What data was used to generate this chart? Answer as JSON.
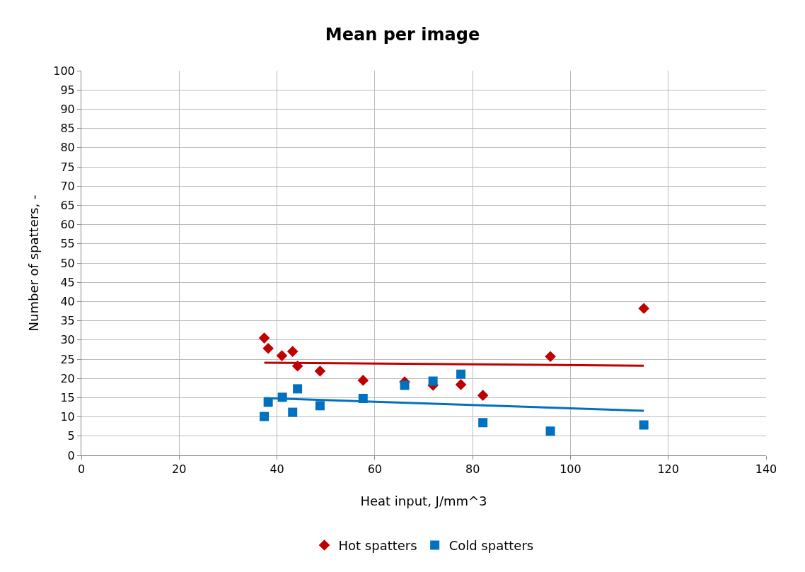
{
  "chart_data": {
    "type": "scatter",
    "title": "Mean per image",
    "xlabel": "Heat input, J/mm^3",
    "ylabel": "Number of spatters, -",
    "xlim": [
      0,
      140
    ],
    "xticks": [
      0,
      20,
      40,
      60,
      80,
      100,
      120,
      140
    ],
    "ylim": [
      0,
      100
    ],
    "yticks": [
      0,
      5,
      10,
      15,
      20,
      25,
      30,
      35,
      40,
      45,
      50,
      55,
      60,
      65,
      70,
      75,
      80,
      85,
      90,
      95,
      100
    ],
    "grid": true,
    "legend": "bottom",
    "series": [
      {
        "name": "Hot spatters",
        "color": "#c00000",
        "marker": "diamond",
        "x": [
          37.4,
          38.2,
          41.0,
          43.2,
          44.2,
          48.8,
          57.6,
          66.1,
          71.9,
          77.6,
          82.1,
          95.9,
          115.0
        ],
        "values": [
          30.5,
          27.8,
          25.9,
          27.0,
          23.2,
          21.9,
          19.5,
          19.1,
          18.2,
          18.4,
          15.6,
          25.7,
          38.2
        ]
      },
      {
        "name": "Cold spatters",
        "color": "#0070c0",
        "marker": "square",
        "x": [
          37.4,
          38.2,
          41.1,
          43.2,
          44.2,
          48.8,
          57.6,
          66.1,
          71.9,
          77.6,
          82.1,
          95.9,
          115.0
        ],
        "values": [
          10.1,
          13.8,
          15.1,
          11.2,
          17.3,
          12.9,
          14.8,
          18.2,
          19.3,
          21.1,
          8.5,
          6.3,
          7.9
        ]
      },
      {
        "type": "line",
        "color": "#c00000",
        "marker": "none",
        "x": [
          37.4,
          115.0
        ],
        "values": [
          24.1,
          23.3
        ]
      },
      {
        "type": "line",
        "color": "#0070c0",
        "marker": "none",
        "x": [
          37.4,
          115.0
        ],
        "values": [
          14.9,
          11.6
        ]
      }
    ]
  }
}
